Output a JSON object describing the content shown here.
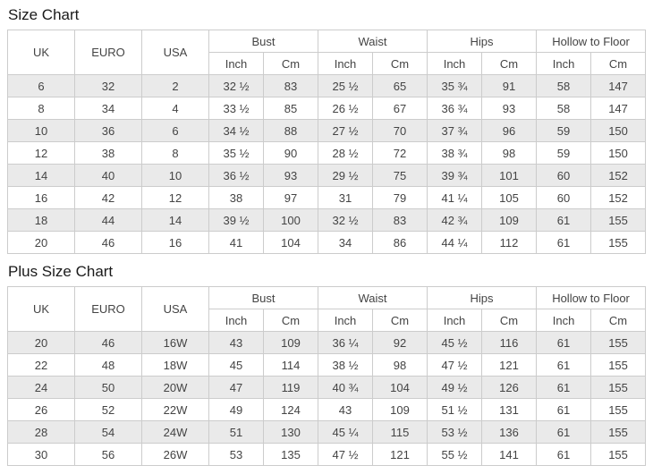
{
  "page": {
    "size_chart_title": "Size Chart",
    "plus_size_chart_title": "Plus Size Chart"
  },
  "header": {
    "uk": "UK",
    "euro": "EURO",
    "usa": "USA",
    "bust": "Bust",
    "waist": "Waist",
    "hips": "Hips",
    "hollow_to_floor": "Hollow to Floor",
    "inch": "Inch",
    "cm": "Cm"
  },
  "colors": {
    "border": "#cccccc",
    "text": "#444444",
    "title": "#1a1a1a",
    "shaded": "#eaeaea"
  },
  "size_chart": {
    "rows": [
      [
        "6",
        "32",
        "2",
        "32 ½",
        "83",
        "25 ½",
        "65",
        "35 ¾",
        "91",
        "58",
        "147"
      ],
      [
        "8",
        "34",
        "4",
        "33 ½",
        "85",
        "26 ½",
        "67",
        "36 ¾",
        "93",
        "58",
        "147"
      ],
      [
        "10",
        "36",
        "6",
        "34 ½",
        "88",
        "27 ½",
        "70",
        "37 ¾",
        "96",
        "59",
        "150"
      ],
      [
        "12",
        "38",
        "8",
        "35 ½",
        "90",
        "28 ½",
        "72",
        "38 ¾",
        "98",
        "59",
        "150"
      ],
      [
        "14",
        "40",
        "10",
        "36 ½",
        "93",
        "29 ½",
        "75",
        "39 ¾",
        "101",
        "60",
        "152"
      ],
      [
        "16",
        "42",
        "12",
        "38",
        "97",
        "31",
        "79",
        "41 ¼",
        "105",
        "60",
        "152"
      ],
      [
        "18",
        "44",
        "14",
        "39 ½",
        "100",
        "32 ½",
        "83",
        "42 ¾",
        "109",
        "61",
        "155"
      ],
      [
        "20",
        "46",
        "16",
        "41",
        "104",
        "34",
        "86",
        "44 ¼",
        "112",
        "61",
        "155"
      ]
    ]
  },
  "plus_size_chart": {
    "rows": [
      [
        "20",
        "46",
        "16W",
        "43",
        "109",
        "36 ¼",
        "92",
        "45 ½",
        "116",
        "61",
        "155"
      ],
      [
        "22",
        "48",
        "18W",
        "45",
        "114",
        "38 ½",
        "98",
        "47 ½",
        "121",
        "61",
        "155"
      ],
      [
        "24",
        "50",
        "20W",
        "47",
        "119",
        "40 ¾",
        "104",
        "49 ½",
        "126",
        "61",
        "155"
      ],
      [
        "26",
        "52",
        "22W",
        "49",
        "124",
        "43",
        "109",
        "51 ½",
        "131",
        "61",
        "155"
      ],
      [
        "28",
        "54",
        "24W",
        "51",
        "130",
        "45 ¼",
        "115",
        "53 ½",
        "136",
        "61",
        "155"
      ],
      [
        "30",
        "56",
        "26W",
        "53",
        "135",
        "47 ½",
        "121",
        "55 ½",
        "141",
        "61",
        "155"
      ]
    ]
  }
}
